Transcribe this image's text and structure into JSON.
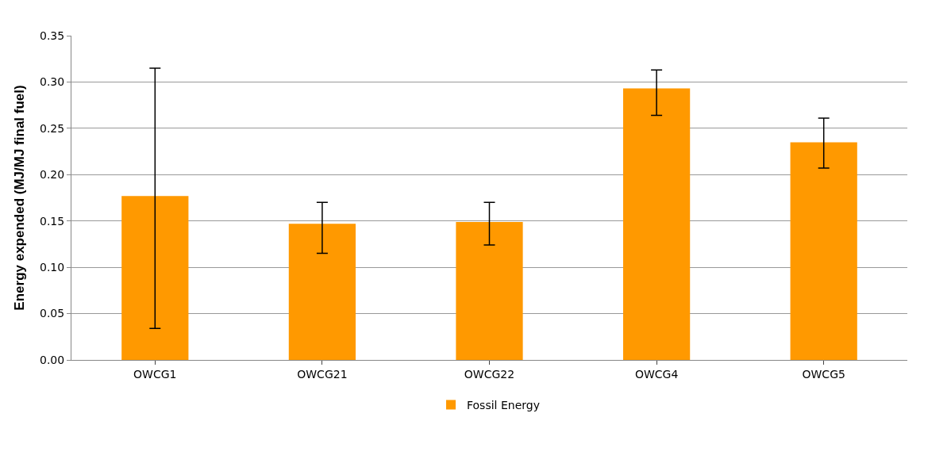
{
  "chart_data": {
    "type": "bar",
    "ylabel": "Energy expended (MJ/MJ final fuel)",
    "categories": [
      "OWCG1",
      "OWCG21",
      "OWCG22",
      "OWCG4",
      "OWCG5"
    ],
    "series": [
      {
        "name": "Fossil Energy",
        "color": "#ff9900",
        "values": [
          0.177,
          0.147,
          0.149,
          0.293,
          0.235
        ],
        "errors": [
          [
            0.034,
            0.315
          ],
          [
            0.115,
            0.17
          ],
          [
            0.124,
            0.17
          ],
          [
            0.264,
            0.313
          ],
          [
            0.207,
            0.261
          ]
        ]
      }
    ],
    "ylim": [
      0,
      0.35
    ],
    "yticks": [
      {
        "value": 0,
        "label": "0.00"
      },
      {
        "value": 0.05,
        "label": "0.05"
      },
      {
        "value": 0.1,
        "label": "0.10"
      },
      {
        "value": 0.15,
        "label": "0.15"
      },
      {
        "value": 0.2,
        "label": "0.20"
      },
      {
        "value": 0.25,
        "label": "0.25"
      },
      {
        "value": 0.3,
        "label": "0.30"
      },
      {
        "value": 0.35,
        "label": "0.35"
      }
    ],
    "grid": "y",
    "legend": "bottom"
  }
}
